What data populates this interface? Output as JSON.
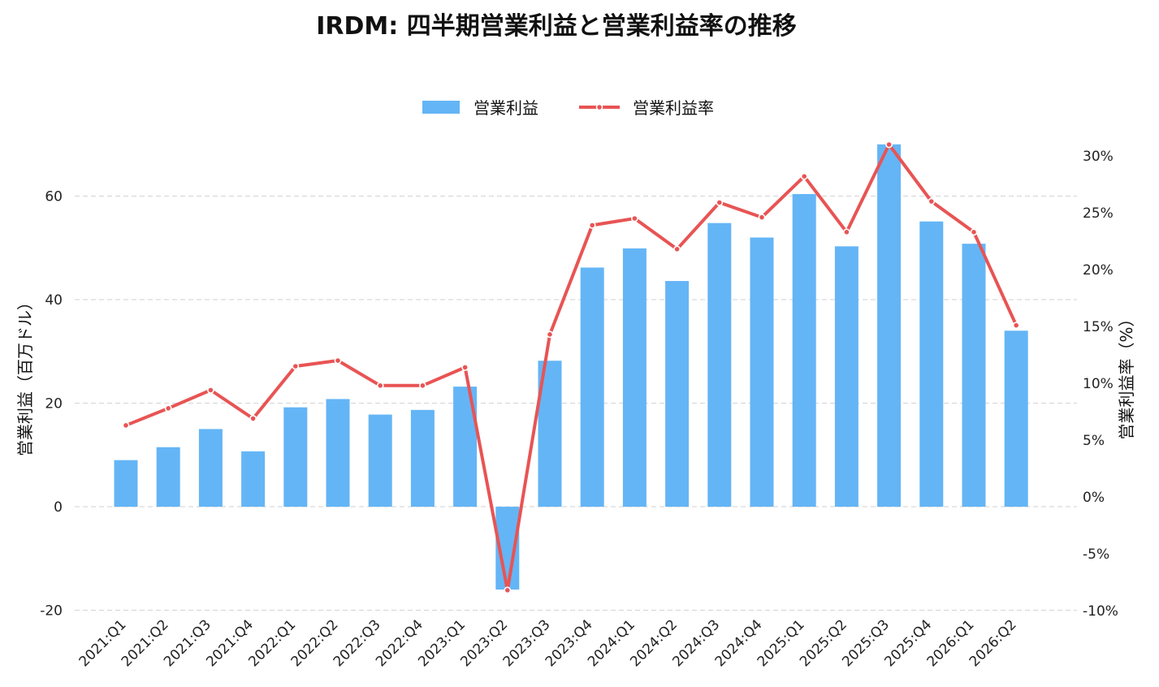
{
  "chart_data": {
    "type": "bar",
    "title": "IRDM: 四半期営業利益と営業利益率の推移",
    "ylabel": "営業利益（百万ドル）",
    "y2label": "営業利益率（%）",
    "ylim": [
      -20,
      70
    ],
    "y2lim": [
      -10,
      31
    ],
    "yticks": [
      "-20",
      "0",
      "20",
      "40",
      "60"
    ],
    "y2ticks": [
      "-10%",
      "-5%",
      "0%",
      "5%",
      "10%",
      "15%",
      "20%",
      "25%",
      "30%"
    ],
    "grid": true,
    "legend_position": "top-center",
    "categories": [
      "2021:Q1",
      "2021:Q2",
      "2021:Q3",
      "2021:Q4",
      "2022:Q1",
      "2022:Q2",
      "2022:Q3",
      "2022:Q4",
      "2023:Q1",
      "2023:Q2",
      "2023:Q3",
      "2023:Q4",
      "2024:Q1",
      "2024:Q2",
      "2024:Q3",
      "2024:Q4",
      "2025:Q1",
      "2025:Q2",
      "2025:Q3",
      "2025:Q4",
      "2026:Q1",
      "2026:Q2"
    ],
    "series": [
      {
        "name": "営業利益",
        "type": "bar",
        "axis": "left",
        "color": "#64b5f6",
        "values": [
          9.0,
          11.5,
          15.0,
          10.7,
          19.2,
          20.8,
          17.8,
          18.7,
          23.2,
          -16.0,
          28.2,
          46.2,
          49.9,
          43.6,
          54.8,
          52.0,
          60.4,
          50.3,
          70.0,
          55.1,
          50.8,
          34.0
        ]
      },
      {
        "name": "営業利益率",
        "type": "line",
        "axis": "right",
        "color": "#e85454",
        "values": [
          6.3,
          7.8,
          9.4,
          6.9,
          11.5,
          12.0,
          9.8,
          9.8,
          11.4,
          -8.2,
          14.3,
          23.9,
          24.5,
          21.8,
          25.9,
          24.6,
          28.2,
          23.3,
          31.0,
          26.0,
          23.3,
          15.1
        ]
      }
    ]
  }
}
